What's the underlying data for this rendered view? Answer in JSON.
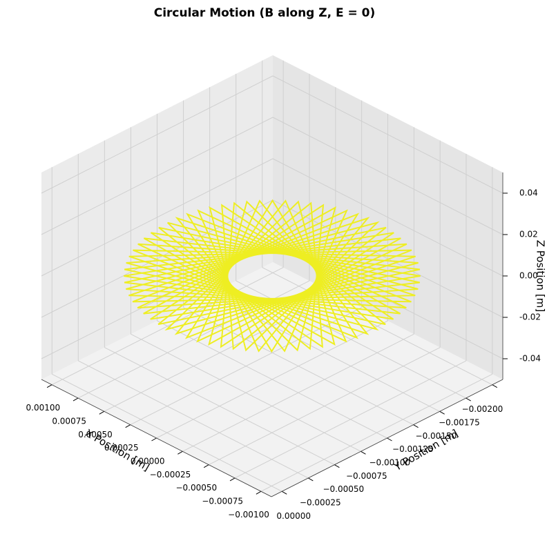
{
  "chart_data": {
    "type": "line3d",
    "title": "Circular Motion (B along Z, E = 0)",
    "xlabel": "X Position [m]",
    "ylabel": "Y Position [m]",
    "zlabel": "Z Position [m]",
    "xlim": [
      -0.0011,
      0.0011
    ],
    "ylim": [
      -0.0021,
      0.0001
    ],
    "zlim": [
      -0.05,
      0.05
    ],
    "xticks": [
      {
        "value": 0.001,
        "label": "0.00100"
      },
      {
        "value": 0.00075,
        "label": "0.00075"
      },
      {
        "value": 0.0005,
        "label": "0.00050"
      },
      {
        "value": 0.00025,
        "label": "0.00025"
      },
      {
        "value": 0,
        "label": "0.00000"
      },
      {
        "value": -0.00025,
        "label": "−0.00025"
      },
      {
        "value": -0.0005,
        "label": "−0.00050"
      },
      {
        "value": -0.00075,
        "label": "−0.00075"
      },
      {
        "value": -0.001,
        "label": "−0.00100"
      }
    ],
    "yticks": [
      {
        "value": -0.002,
        "label": "−0.00200"
      },
      {
        "value": -0.00175,
        "label": "−0.00175"
      },
      {
        "value": -0.0015,
        "label": "−0.00150"
      },
      {
        "value": -0.00125,
        "label": "−0.00125"
      },
      {
        "value": -0.001,
        "label": "−0.00100"
      },
      {
        "value": -0.00075,
        "label": "−0.00075"
      },
      {
        "value": -0.0005,
        "label": "−0.00050"
      },
      {
        "value": -0.00025,
        "label": "−0.00025"
      },
      {
        "value": 0,
        "label": "0.00000"
      }
    ],
    "zticks": [
      -0.04,
      -0.02,
      {
        "value": 0,
        "label": "0.00"
      },
      0.02,
      0.04
    ],
    "grid": true,
    "series": [
      {
        "color": "#eeee22",
        "x": [
          0.001,
          -0.00081915,
          0.00034202,
          0.00025882,
          -0.00076604,
          0.00099619,
          -0.00086603,
          0.00042262,
          0.00017365,
          -0.00070711,
          0.00098481,
          -0.00090631,
          0.0005,
          8.716e-05,
          -0.00064279,
          0.00096593,
          -0.00093969,
          0.00057358,
          0,
          -0.00057358,
          0.00093969,
          -0.00096593,
          0.00064279,
          -8.716e-05,
          -0.0005,
          0.00090631,
          -0.00098481,
          0.00070711,
          -0.00017365,
          -0.00042262,
          0.00086603,
          -0.00099619,
          0.00076604,
          -0.00025882,
          -0.00034202,
          0.00081915,
          -0.001,
          0.00081915,
          -0.00034202,
          -0.00025882,
          0.00076604,
          -0.00099619,
          0.00086603,
          -0.00042262,
          -0.00017365,
          0.00070711,
          -0.00098481,
          0.00090631,
          -0.0005,
          -8.716e-05,
          0.00064279,
          -0.00096593,
          0.00093969,
          -0.00057358,
          0,
          0.00057358,
          -0.00093969,
          0.00096593,
          -0.00064279,
          8.716e-05,
          0.0005,
          -0.00090631,
          0.00098481,
          -0.00070711,
          0.00017365,
          0.00042262,
          -0.00086603,
          0.00099619,
          -0.00076604,
          0.00025882,
          0.00034202,
          -0.00081915,
          0.001
        ],
        "y": [
          -0.001,
          -0.00042642,
          -0.00193969,
          -3.407e-05,
          -0.00164279,
          -0.00091284,
          -0.0005,
          -0.00190631,
          -1.519e-05,
          -0.00170711,
          -0.00082635,
          -0.00057738,
          -0.00186603,
          -3.81e-06,
          -0.00176604,
          -0.00074118,
          -0.00065798,
          -0.00181915,
          0,
          -0.00181915,
          -0.00065798,
          -0.00074118,
          -0.00176604,
          -3.81e-06,
          -0.00186603,
          -0.00057738,
          -0.00082635,
          -0.00170711,
          -1.519e-05,
          -0.00190631,
          -0.0005,
          -0.00091284,
          -0.00164279,
          -3.407e-05,
          -0.00193969,
          -0.00042642,
          -0.001,
          -0.00157358,
          -6.031e-05,
          -0.00196593,
          -0.00035721,
          -0.00108716,
          -0.0015,
          -9.369e-05,
          -0.00198481,
          -0.00029289,
          -0.00117365,
          -0.00142262,
          -0.00013397,
          -0.00199619,
          -0.00023396,
          -0.00125882,
          -0.00134202,
          -0.00018085,
          -0.002,
          -0.00018085,
          -0.00134202,
          -0.00125882,
          -0.00023396,
          -0.00199619,
          -0.00013397,
          -0.00142262,
          -0.00117365,
          -0.00029289,
          -0.00198481,
          -9.369e-05,
          -0.0015,
          -0.00108716,
          -0.00035721,
          -0.00196593,
          -6.031e-05,
          -0.00157358,
          -0.001
        ],
        "z": [
          0,
          0,
          0,
          0,
          0,
          0,
          0,
          0,
          0,
          0,
          0,
          0,
          0,
          0,
          0,
          0,
          0,
          0,
          0,
          0,
          0,
          0,
          0,
          0,
          0,
          0,
          0,
          0,
          0,
          0,
          0,
          0,
          0,
          0,
          0,
          0,
          0,
          0,
          0,
          0,
          0,
          0,
          0,
          0,
          0,
          0,
          0,
          0,
          0,
          0,
          0,
          0,
          0,
          0,
          0,
          0,
          0,
          0,
          0,
          0,
          0,
          0,
          0,
          0,
          0,
          0,
          0,
          0,
          0,
          0,
          0,
          0,
          0
        ]
      }
    ]
  }
}
